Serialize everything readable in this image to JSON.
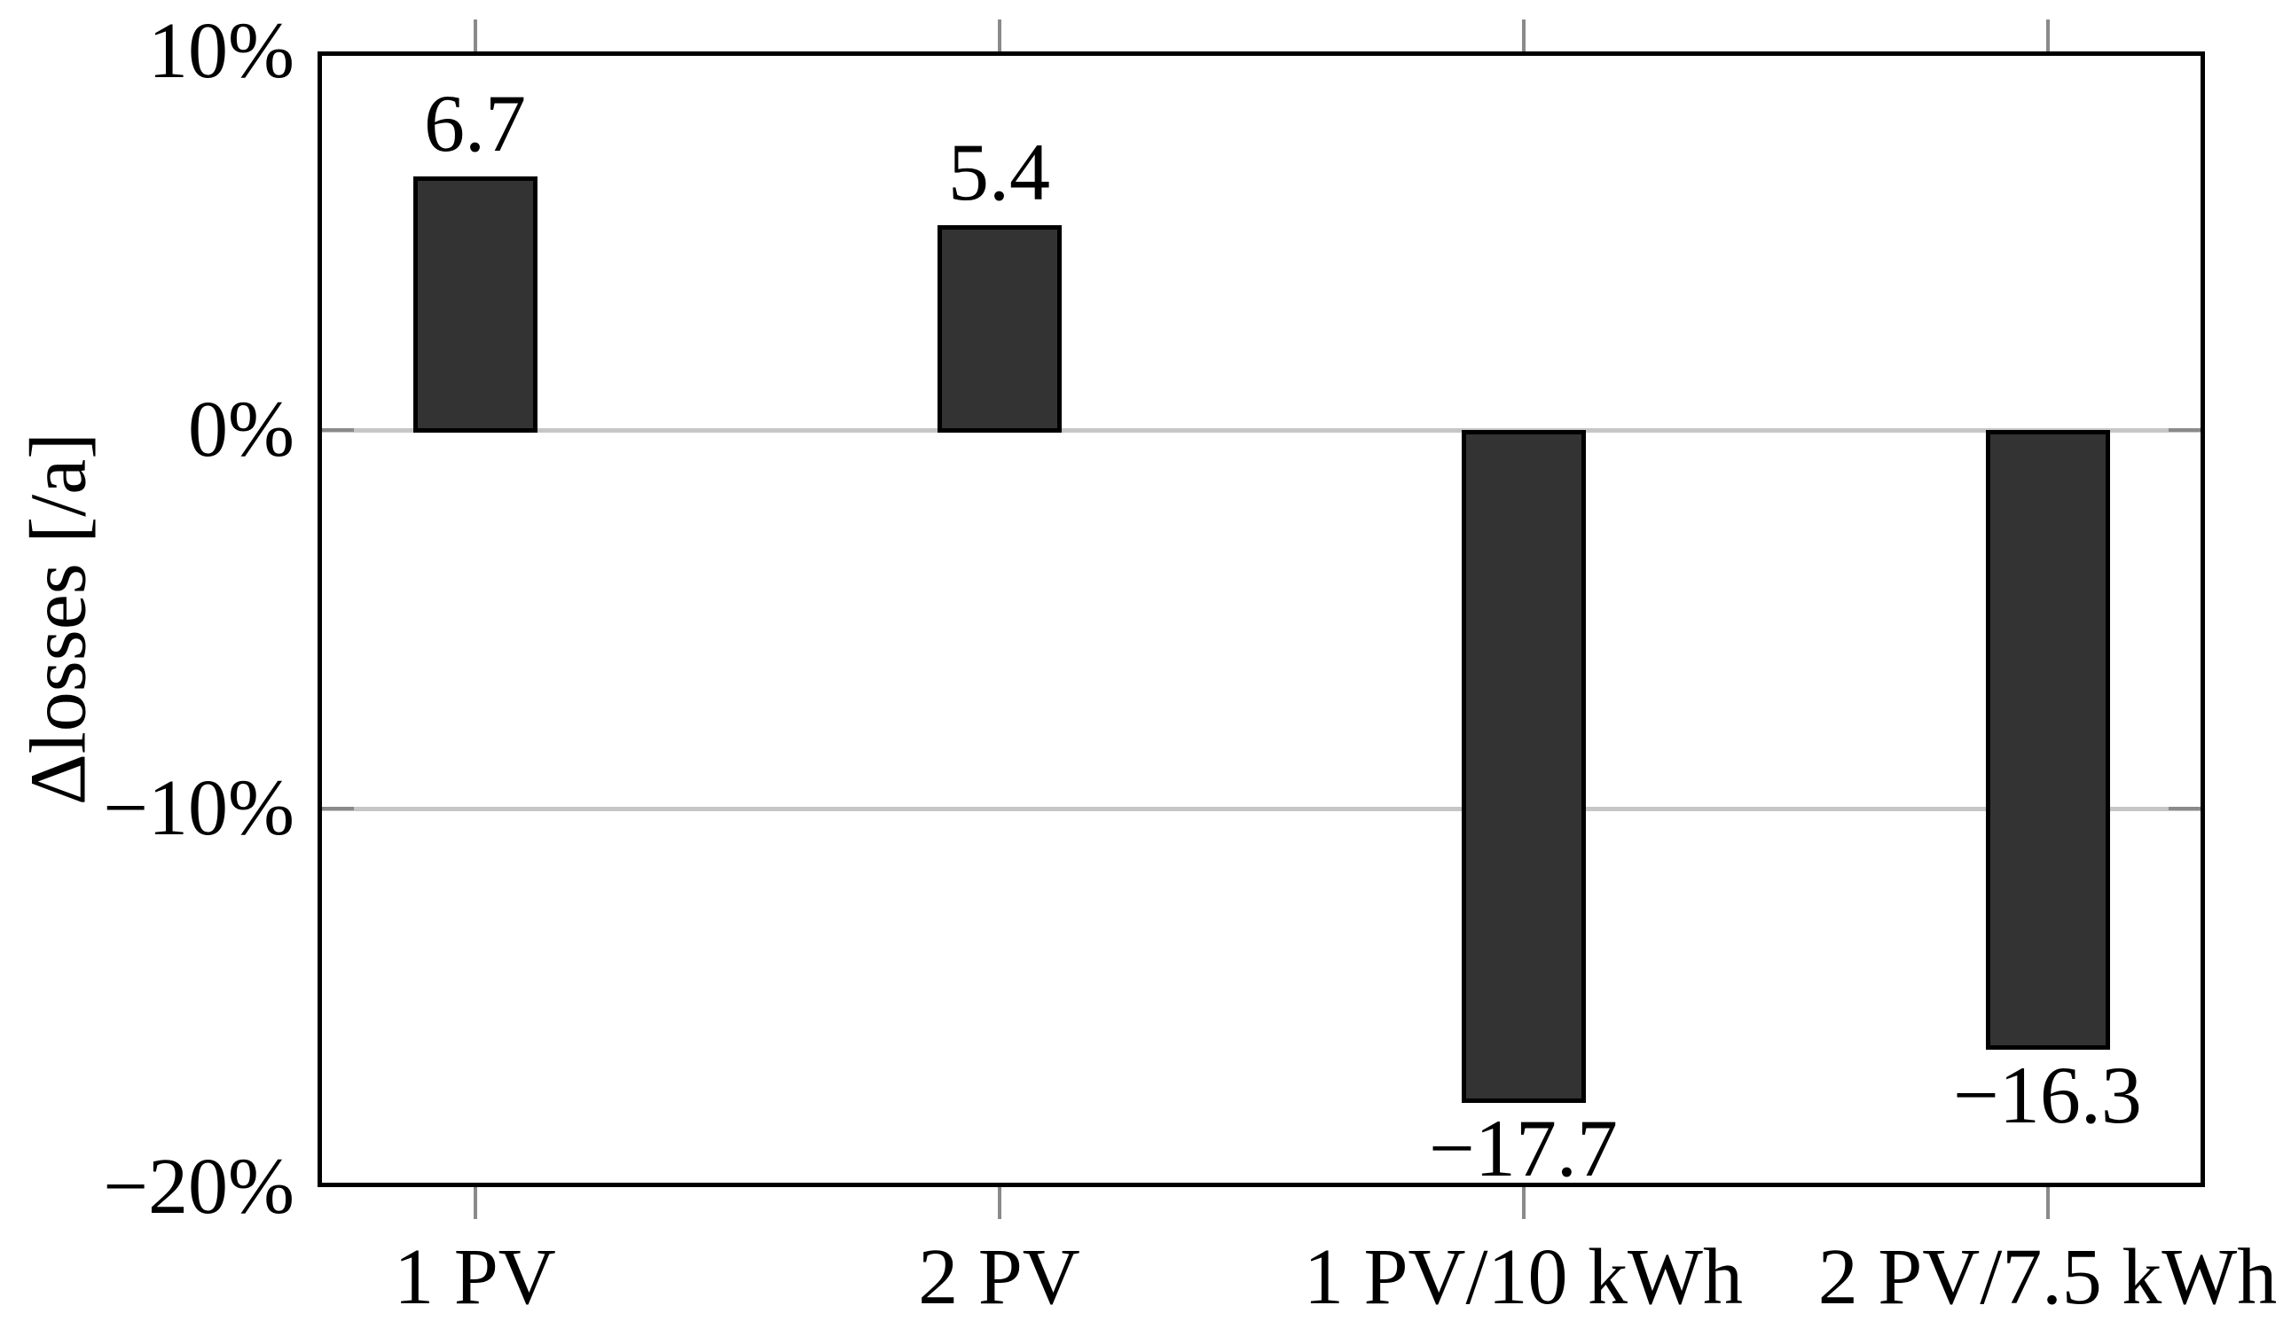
{
  "chart_data": {
    "type": "bar",
    "title": "",
    "xlabel": "",
    "ylabel": "Δlosses [/a]",
    "categories": [
      "1 PV",
      "2 PV",
      "1 PV/10 kWh",
      "2 PV/7.5 kWh"
    ],
    "values": [
      6.7,
      5.4,
      -17.7,
      -16.3
    ],
    "value_labels": [
      "6.7",
      "5.4",
      "−17.7",
      "−16.3"
    ],
    "series": [
      {
        "name": "Δlosses",
        "values": [
          6.7,
          5.4,
          -17.7,
          -16.3
        ]
      }
    ],
    "ylim": [
      -20,
      10
    ],
    "yticks": [
      {
        "value": 10,
        "label": "10%"
      },
      {
        "value": 0,
        "label": "0%"
      },
      {
        "value": -10,
        "label": "−10%"
      },
      {
        "value": -20,
        "label": "−20%"
      }
    ],
    "gridlines_at": [
      0,
      -10
    ],
    "grid": "horizontal-only",
    "legend_position": "none",
    "value_label_position": "outside-end",
    "colors": {
      "bar_fill": "#333333",
      "bar_border": "#000000",
      "frame": "#000000",
      "gridline": "#c6c6c6",
      "tick_mark": "#8a8a8a",
      "text": "#000000",
      "background": "#ffffff"
    }
  }
}
